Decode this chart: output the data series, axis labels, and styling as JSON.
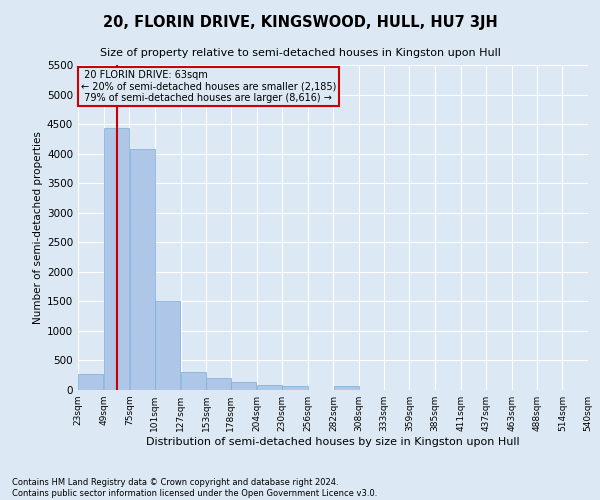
{
  "title": "20, FLORIN DRIVE, KINGSWOOD, HULL, HU7 3JH",
  "subtitle": "Size of property relative to semi-detached houses in Kingston upon Hull",
  "xlabel": "Distribution of semi-detached houses by size in Kingston upon Hull",
  "ylabel": "Number of semi-detached properties",
  "footnote": "Contains HM Land Registry data © Crown copyright and database right 2024.\nContains public sector information licensed under the Open Government Licence v3.0.",
  "property_label": "20 FLORIN DRIVE: 63sqm",
  "pct_smaller": 20,
  "n_smaller": 2185,
  "pct_larger": 79,
  "n_larger": 8616,
  "bin_labels": [
    "23sqm",
    "49sqm",
    "75sqm",
    "101sqm",
    "127sqm",
    "153sqm",
    "178sqm",
    "204sqm",
    "230sqm",
    "256sqm",
    "282sqm",
    "308sqm",
    "333sqm",
    "359sqm",
    "385sqm",
    "411sqm",
    "437sqm",
    "463sqm",
    "488sqm",
    "514sqm",
    "540sqm"
  ],
  "bin_edges": [
    23,
    49,
    75,
    101,
    127,
    153,
    178,
    204,
    230,
    256,
    282,
    308,
    333,
    359,
    385,
    411,
    437,
    463,
    488,
    514,
    540
  ],
  "bar_heights": [
    270,
    4430,
    4080,
    1510,
    310,
    200,
    130,
    80,
    60,
    0,
    65,
    0,
    0,
    0,
    0,
    0,
    0,
    0,
    0,
    0
  ],
  "bar_color": "#aec6e8",
  "bar_edge_color": "#7aaed4",
  "red_line_x": 63,
  "red_line_color": "#cc0000",
  "background_color": "#dce9f5",
  "ylim": [
    0,
    5500
  ],
  "yticks": [
    0,
    500,
    1000,
    1500,
    2000,
    2500,
    3000,
    3500,
    4000,
    4500,
    5000,
    5500
  ]
}
